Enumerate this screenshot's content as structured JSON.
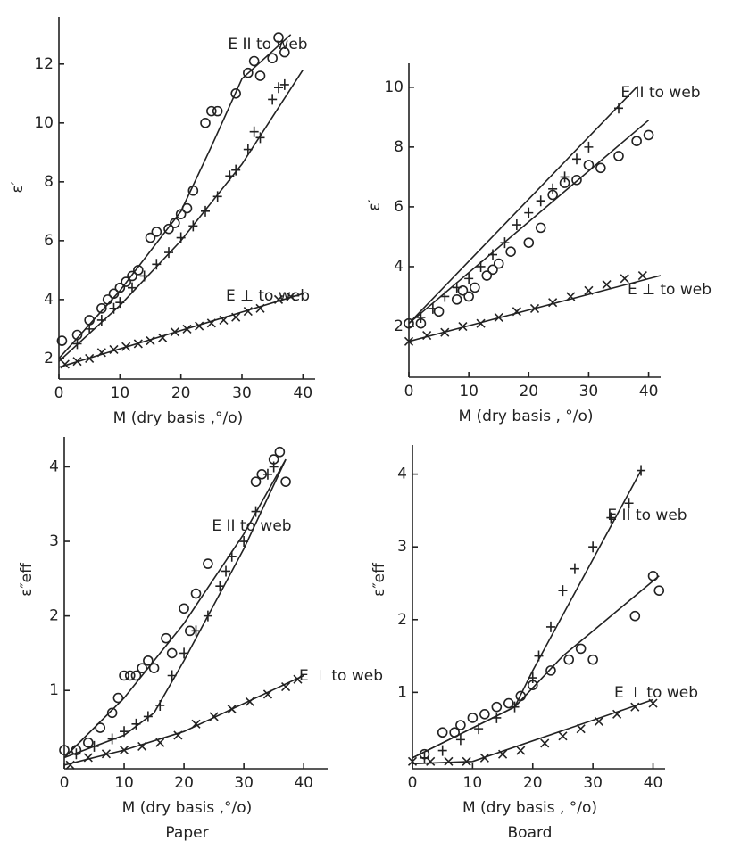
{
  "chart_data": [
    {
      "type": "scatter",
      "y_label": "ε′",
      "x_label": "M (dry basis ,°/o)",
      "annotations": [
        "E II to web",
        "E ⊥ to web"
      ],
      "xlim": [
        0,
        42
      ],
      "ylim": [
        1.3,
        13.6
      ],
      "xticks": [
        0,
        10,
        20,
        30,
        40
      ],
      "yticks": [
        2,
        4,
        6,
        8,
        10,
        12
      ],
      "series": [
        {
          "marker": "o",
          "color": "#222",
          "x": [
            0.5,
            3,
            5,
            7,
            8,
            9,
            10,
            11,
            12,
            13,
            15,
            16,
            18,
            19,
            20,
            21,
            22,
            24,
            25,
            26,
            29,
            31,
            32,
            33,
            35,
            36,
            37
          ],
          "values": [
            2.6,
            2.8,
            3.3,
            3.7,
            4.0,
            4.2,
            4.4,
            4.6,
            4.8,
            5.0,
            6.1,
            6.3,
            6.4,
            6.6,
            6.9,
            7.1,
            7.7,
            10.0,
            10.4,
            10.4,
            11.0,
            11.7,
            12.1,
            11.6,
            12.2,
            12.9,
            12.4
          ]
        },
        {
          "marker": "+",
          "color": "#222",
          "x": [
            3,
            5,
            7,
            9,
            10,
            12,
            14,
            16,
            18,
            20,
            22,
            24,
            26,
            28,
            29,
            31,
            32,
            33,
            35,
            36,
            37
          ],
          "values": [
            2.5,
            3.0,
            3.3,
            3.7,
            3.9,
            4.4,
            4.8,
            5.2,
            5.6,
            6.1,
            6.5,
            7.0,
            7.5,
            8.2,
            8.4,
            9.1,
            9.7,
            9.5,
            10.8,
            11.2,
            11.3
          ]
        },
        {
          "marker": "x",
          "color": "#222",
          "x": [
            1,
            3,
            5,
            7,
            9,
            11,
            13,
            15,
            17,
            19,
            21,
            23,
            25,
            27,
            29,
            31,
            33,
            36,
            38
          ],
          "values": [
            1.8,
            1.9,
            2.0,
            2.2,
            2.3,
            2.4,
            2.5,
            2.6,
            2.7,
            2.9,
            3.0,
            3.1,
            3.2,
            3.3,
            3.4,
            3.6,
            3.7,
            4.0,
            4.1
          ]
        }
      ],
      "lines": [
        {
          "x": [
            0,
            10,
            20,
            25,
            30,
            38
          ],
          "values": [
            2.0,
            4.3,
            7.0,
            9.2,
            11.5,
            13.0
          ]
        },
        {
          "x": [
            0,
            10,
            20,
            30,
            40
          ],
          "values": [
            1.9,
            3.8,
            6.0,
            8.6,
            11.8
          ]
        },
        {
          "x": [
            0,
            40
          ],
          "values": [
            1.7,
            4.2
          ]
        }
      ]
    },
    {
      "type": "scatter",
      "y_label": "ε′",
      "x_label": "M (dry basis , °/o)",
      "annotations": [
        "E II to web",
        "E ⊥ to web"
      ],
      "xlim": [
        0,
        42
      ],
      "ylim": [
        0.3,
        10.8
      ],
      "xticks": [
        0,
        10,
        20,
        30,
        40
      ],
      "yticks": [
        2,
        4,
        6,
        8,
        10
      ],
      "series": [
        {
          "marker": "o",
          "color": "#222",
          "x": [
            0,
            2,
            5,
            8,
            9,
            10,
            11,
            13,
            14,
            15,
            17,
            20,
            22,
            24,
            26,
            28,
            30,
            32,
            35,
            38,
            40
          ],
          "values": [
            2.1,
            2.1,
            2.5,
            2.9,
            3.2,
            3.0,
            3.3,
            3.7,
            3.9,
            4.1,
            4.5,
            4.8,
            5.3,
            6.4,
            6.8,
            6.9,
            7.4,
            7.3,
            7.7,
            8.2,
            8.4
          ]
        },
        {
          "marker": "+",
          "color": "#222",
          "x": [
            2,
            4,
            6,
            8,
            10,
            12,
            14,
            16,
            18,
            20,
            22,
            24,
            26,
            28,
            30,
            35
          ],
          "values": [
            2.3,
            2.6,
            3.0,
            3.3,
            3.6,
            4.0,
            4.4,
            4.8,
            5.4,
            5.8,
            6.2,
            6.6,
            7.0,
            7.6,
            8.0,
            9.3
          ]
        },
        {
          "marker": "x",
          "color": "#222",
          "x": [
            0,
            3,
            6,
            9,
            12,
            15,
            18,
            21,
            24,
            27,
            30,
            33,
            36,
            39
          ],
          "values": [
            1.5,
            1.7,
            1.8,
            2.0,
            2.1,
            2.3,
            2.5,
            2.6,
            2.8,
            3.0,
            3.2,
            3.4,
            3.6,
            3.7
          ]
        }
      ],
      "lines": [
        {
          "x": [
            0,
            40
          ],
          "values": [
            2.1,
            8.9
          ]
        },
        {
          "x": [
            0,
            38
          ],
          "values": [
            2.1,
            10.0
          ]
        },
        {
          "x": [
            0,
            42
          ],
          "values": [
            1.5,
            3.7
          ]
        }
      ]
    },
    {
      "type": "scatter",
      "y_label": "ε″eff",
      "x_label": "M (dry basis ,°/o)",
      "caption": "Paper",
      "annotations": [
        "E II to web",
        "E ⊥ to web"
      ],
      "xlim": [
        0,
        44
      ],
      "ylim": [
        -0.05,
        4.4
      ],
      "xticks": [
        0,
        10,
        20,
        30,
        40
      ],
      "yticks": [
        1,
        2,
        3,
        4
      ],
      "series": [
        {
          "marker": "o",
          "color": "#222",
          "x": [
            0,
            2,
            4,
            6,
            8,
            9,
            10,
            11,
            12,
            13,
            14,
            15,
            17,
            18,
            20,
            21,
            22,
            24,
            32,
            33,
            35,
            36,
            37
          ],
          "values": [
            0.2,
            0.2,
            0.3,
            0.5,
            0.7,
            0.9,
            1.2,
            1.2,
            1.2,
            1.3,
            1.4,
            1.3,
            1.7,
            1.5,
            2.1,
            1.8,
            2.3,
            2.7,
            3.8,
            3.9,
            4.1,
            4.2,
            3.8
          ]
        },
        {
          "marker": "+",
          "color": "#222",
          "x": [
            2,
            5,
            8,
            10,
            12,
            14,
            16,
            18,
            20,
            22,
            24,
            26,
            27,
            28,
            30,
            32,
            34,
            35
          ],
          "values": [
            0.15,
            0.25,
            0.35,
            0.45,
            0.55,
            0.65,
            0.8,
            1.2,
            1.5,
            1.8,
            2.0,
            2.4,
            2.6,
            2.8,
            3.0,
            3.4,
            3.9,
            4.0
          ]
        },
        {
          "marker": "x",
          "color": "#222",
          "x": [
            1,
            4,
            7,
            10,
            13,
            16,
            19,
            22,
            25,
            28,
            31,
            34,
            37,
            39
          ],
          "values": [
            0.0,
            0.1,
            0.15,
            0.2,
            0.25,
            0.3,
            0.4,
            0.55,
            0.65,
            0.75,
            0.85,
            0.95,
            1.05,
            1.15
          ]
        }
      ],
      "lines": [
        {
          "x": [
            0,
            10,
            20,
            30,
            37
          ],
          "values": [
            0.1,
            0.9,
            1.9,
            3.1,
            4.1
          ]
        },
        {
          "x": [
            0,
            10,
            15,
            20,
            30,
            37
          ],
          "values": [
            0.1,
            0.4,
            0.7,
            1.4,
            2.9,
            4.1
          ]
        },
        {
          "x": [
            0,
            10,
            20,
            40
          ],
          "values": [
            0.0,
            0.2,
            0.45,
            1.2
          ]
        }
      ]
    },
    {
      "type": "scatter",
      "y_label": "ε″eff",
      "x_label": "M (dry basis , °/o)",
      "caption": "Board",
      "annotations": [
        "E II to web",
        "E ⊥ to web"
      ],
      "xlim": [
        0,
        42
      ],
      "ylim": [
        -0.05,
        4.4
      ],
      "xticks": [
        0,
        10,
        20,
        30,
        40
      ],
      "yticks": [
        1,
        2,
        3,
        4
      ],
      "series": [
        {
          "marker": "o",
          "color": "#222",
          "x": [
            2,
            5,
            7,
            8,
            10,
            12,
            14,
            16,
            18,
            20,
            23,
            26,
            28,
            30,
            37,
            40,
            41
          ],
          "values": [
            0.15,
            0.45,
            0.45,
            0.55,
            0.65,
            0.7,
            0.8,
            0.85,
            0.95,
            1.1,
            1.3,
            1.45,
            1.6,
            1.45,
            2.05,
            2.6,
            2.4
          ]
        },
        {
          "marker": "+",
          "color": "#222",
          "x": [
            2,
            5,
            8,
            11,
            14,
            17,
            20,
            21,
            23,
            25,
            27,
            30,
            33,
            36,
            38
          ],
          "values": [
            0.1,
            0.2,
            0.35,
            0.5,
            0.65,
            0.8,
            1.2,
            1.5,
            1.9,
            2.4,
            2.7,
            3.0,
            3.4,
            3.6,
            4.05
          ]
        },
        {
          "marker": "x",
          "color": "#222",
          "x": [
            0,
            3,
            6,
            9,
            12,
            15,
            18,
            22,
            25,
            28,
            31,
            34,
            37,
            40
          ],
          "values": [
            0.05,
            0.05,
            0.05,
            0.05,
            0.1,
            0.15,
            0.2,
            0.3,
            0.4,
            0.5,
            0.6,
            0.7,
            0.8,
            0.85
          ]
        }
      ],
      "lines": [
        {
          "x": [
            0,
            17,
            25,
            41
          ],
          "values": [
            0.1,
            0.8,
            1.5,
            2.6
          ]
        },
        {
          "x": [
            0,
            17,
            20,
            38
          ],
          "values": [
            0.1,
            0.8,
            1.3,
            4.05
          ]
        },
        {
          "x": [
            0,
            10,
            40
          ],
          "values": [
            0.02,
            0.05,
            0.9
          ]
        }
      ]
    }
  ]
}
